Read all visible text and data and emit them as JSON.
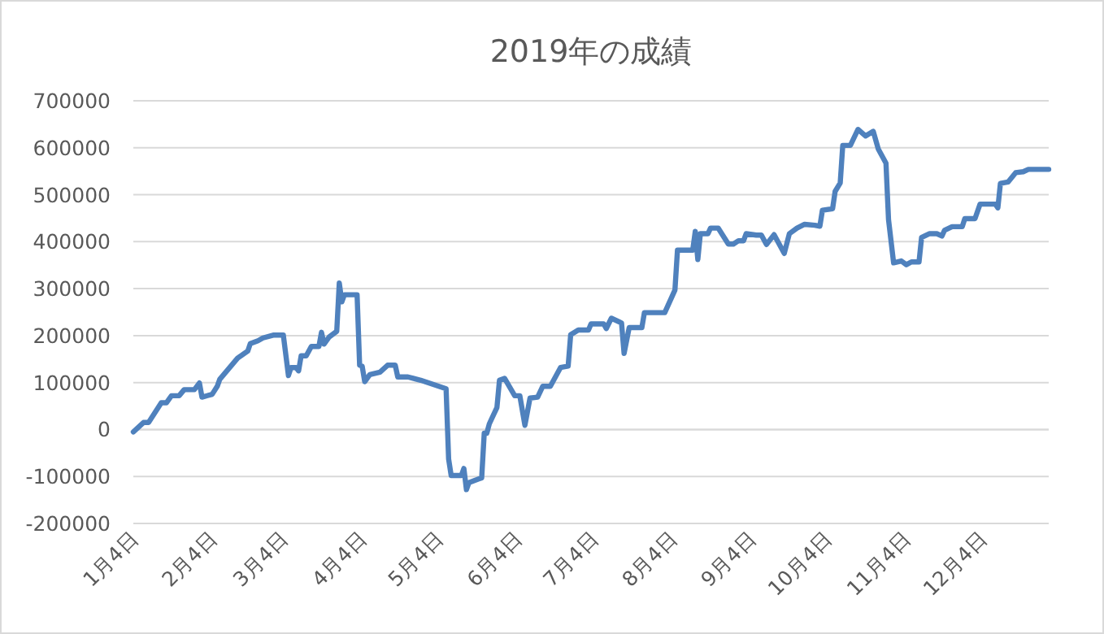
{
  "chart_data": {
    "type": "line",
    "title": "2019年の成績",
    "grid": "y",
    "xlim": [
      "2019-01-04",
      "2019-12-30"
    ],
    "ylim": [
      -200000,
      700000
    ],
    "yticks": [
      -200000,
      -100000,
      0,
      100000,
      200000,
      300000,
      400000,
      500000,
      600000,
      700000
    ],
    "xticks": [
      {
        "value": "2019-01-04",
        "label": "1月4日"
      },
      {
        "value": "2019-02-04",
        "label": "2月4日"
      },
      {
        "value": "2019-03-04",
        "label": "3月4日"
      },
      {
        "value": "2019-04-04",
        "label": "4月4日"
      },
      {
        "value": "2019-05-04",
        "label": "5月4日"
      },
      {
        "value": "2019-06-04",
        "label": "6月4日"
      },
      {
        "value": "2019-07-04",
        "label": "7月4日"
      },
      {
        "value": "2019-08-04",
        "label": "8月4日"
      },
      {
        "value": "2019-09-04",
        "label": "9月4日"
      },
      {
        "value": "2019-10-04",
        "label": "10月4日"
      },
      {
        "value": "2019-11-04",
        "label": "11月4日"
      },
      {
        "value": "2019-12-04",
        "label": "12月4日"
      }
    ],
    "series": [
      {
        "color": "#4f81bd",
        "x": [
          "2019-01-04",
          "2019-01-08",
          "2019-01-10",
          "2019-01-15",
          "2019-01-17",
          "2019-01-19",
          "2019-01-22",
          "2019-01-24",
          "2019-01-28",
          "2019-01-30",
          "2019-01-31",
          "2019-02-04",
          "2019-02-06",
          "2019-02-07",
          "2019-02-14",
          "2019-02-18",
          "2019-02-19",
          "2019-02-22",
          "2019-02-24",
          "2019-02-28",
          "2019-03-04",
          "2019-03-06",
          "2019-03-07",
          "2019-03-09",
          "2019-03-10",
          "2019-03-11",
          "2019-03-13",
          "2019-03-15",
          "2019-03-18",
          "2019-03-19",
          "2019-03-20",
          "2019-03-22",
          "2019-03-25",
          "2019-03-26",
          "2019-03-27",
          "2019-03-28",
          "2019-04-02",
          "2019-04-03",
          "2019-04-04",
          "2019-04-05",
          "2019-04-07",
          "2019-04-11",
          "2019-04-14",
          "2019-04-17",
          "2019-04-18",
          "2019-04-22",
          "2019-04-27",
          "2019-05-07",
          "2019-05-08",
          "2019-05-09",
          "2019-05-13",
          "2019-05-14",
          "2019-05-15",
          "2019-05-16",
          "2019-05-20",
          "2019-05-21",
          "2019-05-22",
          "2019-05-23",
          "2019-05-24",
          "2019-05-27",
          "2019-05-28",
          "2019-05-30",
          "2019-06-03",
          "2019-06-05",
          "2019-06-07",
          "2019-06-09",
          "2019-06-12",
          "2019-06-14",
          "2019-06-17",
          "2019-06-21",
          "2019-06-24",
          "2019-06-25",
          "2019-06-28",
          "2019-07-02",
          "2019-07-03",
          "2019-07-08",
          "2019-07-09",
          "2019-07-11",
          "2019-07-15",
          "2019-07-16",
          "2019-07-18",
          "2019-07-23",
          "2019-07-24",
          "2019-08-01",
          "2019-08-05",
          "2019-08-06",
          "2019-08-12",
          "2019-08-13",
          "2019-08-14",
          "2019-08-15",
          "2019-08-18",
          "2019-08-19",
          "2019-08-22",
          "2019-08-26",
          "2019-08-28",
          "2019-08-30",
          "2019-09-01",
          "2019-09-02",
          "2019-09-06",
          "2019-09-08",
          "2019-09-10",
          "2019-09-13",
          "2019-09-17",
          "2019-09-19",
          "2019-09-22",
          "2019-09-25",
          "2019-09-29",
          "2019-10-01",
          "2019-10-02",
          "2019-10-06",
          "2019-10-07",
          "2019-10-09",
          "2019-10-10",
          "2019-10-13",
          "2019-10-16",
          "2019-10-19",
          "2019-10-22",
          "2019-10-24",
          "2019-10-27",
          "2019-10-28",
          "2019-10-30",
          "2019-11-02",
          "2019-11-04",
          "2019-11-06",
          "2019-11-09",
          "2019-11-10",
          "2019-11-13",
          "2019-11-16",
          "2019-11-18",
          "2019-11-19",
          "2019-11-22",
          "2019-11-26",
          "2019-11-27",
          "2019-12-01",
          "2019-12-03",
          "2019-12-09",
          "2019-12-10",
          "2019-12-11",
          "2019-12-14",
          "2019-12-17",
          "2019-12-20",
          "2019-12-22",
          "2019-12-30"
        ],
        "values": [
          -5000,
          15000,
          15000,
          57000,
          57000,
          72000,
          72000,
          85000,
          85000,
          99000,
          69000,
          75000,
          92000,
          107000,
          152000,
          167000,
          183000,
          189000,
          195000,
          201000,
          201000,
          115000,
          132000,
          132000,
          125000,
          157000,
          157000,
          177000,
          177000,
          207000,
          182000,
          197000,
          209000,
          312000,
          272000,
          287000,
          287000,
          137000,
          135000,
          102000,
          117000,
          122000,
          137000,
          137000,
          112000,
          112000,
          105000,
          87000,
          -63000,
          -98000,
          -98000,
          -83000,
          -128000,
          -113000,
          -105000,
          -103000,
          -8000,
          -8000,
          12000,
          47000,
          105000,
          109000,
          72000,
          72000,
          9000,
          67000,
          69000,
          92000,
          92000,
          132000,
          135000,
          202000,
          212000,
          212000,
          225000,
          225000,
          215000,
          237000,
          227000,
          162000,
          217000,
          217000,
          249000,
          249000,
          297000,
          382000,
          382000,
          422000,
          362000,
          417000,
          417000,
          429000,
          429000,
          395000,
          395000,
          402000,
          402000,
          417000,
          414000,
          414000,
          394000,
          415000,
          375000,
          417000,
          429000,
          437000,
          435000,
          433000,
          467000,
          470000,
          507000,
          525000,
          605000,
          605000,
          639000,
          625000,
          635000,
          597000,
          567000,
          447000,
          355000,
          359000,
          351000,
          357000,
          357000,
          409000,
          417000,
          417000,
          412000,
          424000,
          432000,
          432000,
          449000,
          449000,
          480000,
          480000,
          472000,
          524000,
          527000,
          547000,
          549000,
          554000,
          554000
        ]
      }
    ]
  }
}
